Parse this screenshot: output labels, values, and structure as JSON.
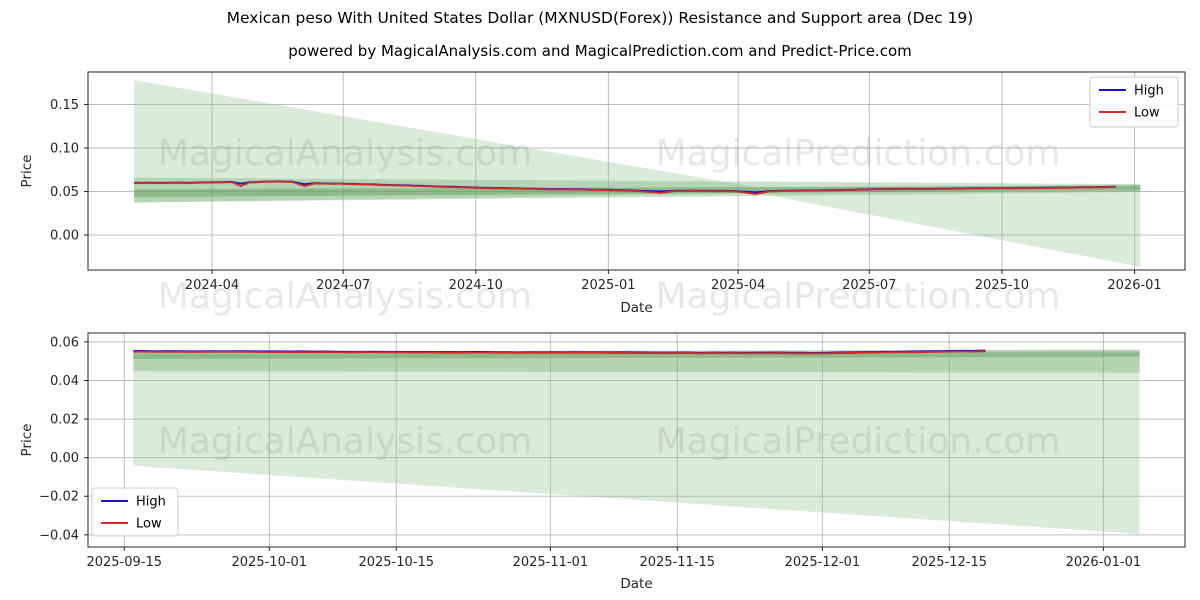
{
  "title": "Mexican peso With United States Dollar (MXNUSD(Forex)) Resistance and Support area (Dec 19)",
  "subtitle": "powered by MagicalAnalysis.com and MagicalPrediction.com and Predict-Price.com",
  "colors": {
    "high_line": "#1414cc",
    "low_line": "#d42a2a",
    "band_light": "rgba(134,188,130,0.30)",
    "band_mid": "rgba(110,170,105,0.35)",
    "band_dark": "rgba(90,150,85,0.42)",
    "grid": "#b0b0b0",
    "spine": "#262626",
    "watermark": "rgba(100,100,100,0.15)"
  },
  "watermarks": [
    "MagicalAnalysis.com",
    "MagicalPrediction.com"
  ],
  "chart_data": [
    {
      "type": "line",
      "title": "",
      "xlabel": "Date",
      "ylabel": "Price",
      "grid": true,
      "legend_position": "upper right",
      "legend": [
        "High",
        "Low"
      ],
      "xlim": [
        "2024-01-06",
        "2026-02-05"
      ],
      "ylim": [
        -0.0402,
        0.1874
      ],
      "x_ticks": [
        [
          "2024-04-01",
          "2024-04"
        ],
        [
          "2024-07-01",
          "2024-07"
        ],
        [
          "2024-10-01",
          "2024-10"
        ],
        [
          "2025-01-01",
          "2025-01"
        ],
        [
          "2025-04-01",
          "2025-04"
        ],
        [
          "2025-07-01",
          "2025-07"
        ],
        [
          "2025-10-01",
          "2025-10"
        ],
        [
          "2026-01-01",
          "2026-01"
        ]
      ],
      "y_ticks": [
        [
          0.0,
          "0.00"
        ],
        [
          0.05,
          "0.05"
        ],
        [
          0.1,
          "0.10"
        ],
        [
          0.15,
          "0.15"
        ]
      ],
      "bands": [
        {
          "name": "forecast-wedge",
          "colorKey": "band_light",
          "upper": [
            [
              "2024-02-07",
              0.178
            ],
            [
              "2025-04-15",
              0.0545
            ],
            [
              "2026-01-05",
              0.0575
            ]
          ],
          "lower": [
            [
              "2024-02-07",
              0.0372
            ],
            [
              "2025-04-15",
              0.048
            ],
            [
              "2026-01-05",
              -0.0365
            ]
          ]
        },
        {
          "name": "support-band",
          "colorKey": "band_mid",
          "upper": [
            [
              "2024-02-07",
              0.066
            ],
            [
              "2026-01-05",
              0.0585
            ]
          ],
          "lower": [
            [
              "2024-02-07",
              0.0375
            ],
            [
              "2026-01-05",
              0.0495
            ]
          ]
        },
        {
          "name": "core-band",
          "colorKey": "band_dark",
          "upper": [
            [
              "2024-02-07",
              0.0525
            ],
            [
              "2026-01-05",
              0.0568
            ]
          ],
          "lower": [
            [
              "2024-02-07",
              0.0435
            ],
            [
              "2026-01-05",
              0.0515
            ]
          ]
        }
      ],
      "series": {
        "dates": [
          "2024-02-07",
          "2024-02-17",
          "2024-02-27",
          "2024-03-08",
          "2024-03-18",
          "2024-03-28",
          "2024-04-07",
          "2024-04-15",
          "2024-04-21",
          "2024-04-27",
          "2024-05-07",
          "2024-05-17",
          "2024-05-27",
          "2024-06-04",
          "2024-06-12",
          "2024-06-22",
          "2024-07-02",
          "2024-07-12",
          "2024-07-25",
          "2024-08-08",
          "2024-08-22",
          "2024-09-05",
          "2024-09-19",
          "2024-10-03",
          "2024-10-17",
          "2024-10-31",
          "2024-11-14",
          "2024-11-28",
          "2024-12-12",
          "2024-12-26",
          "2025-01-09",
          "2025-01-23",
          "2025-02-06",
          "2025-02-16",
          "2025-03-02",
          "2025-03-16",
          "2025-03-30",
          "2025-04-13",
          "2025-04-23",
          "2025-05-07",
          "2025-05-21",
          "2025-06-04",
          "2025-06-18",
          "2025-07-02",
          "2025-07-16",
          "2025-07-30",
          "2025-08-13",
          "2025-08-27",
          "2025-09-10",
          "2025-09-24",
          "2025-10-08",
          "2025-10-22",
          "2025-11-05",
          "2025-11-19",
          "2025-12-03",
          "2025-12-12",
          "2025-12-19"
        ],
        "high": [
          0.06,
          0.0602,
          0.06,
          0.0603,
          0.0602,
          0.0605,
          0.0608,
          0.0611,
          0.0591,
          0.0608,
          0.0614,
          0.0618,
          0.0613,
          0.0585,
          0.0597,
          0.0592,
          0.0591,
          0.0586,
          0.058,
          0.0574,
          0.0567,
          0.0559,
          0.0553,
          0.0546,
          0.0542,
          0.0537,
          0.0532,
          0.0529,
          0.0527,
          0.0522,
          0.0517,
          0.0509,
          0.0503,
          0.0509,
          0.0511,
          0.0508,
          0.0506,
          0.0491,
          0.0506,
          0.0511,
          0.0514,
          0.0517,
          0.052,
          0.0527,
          0.053,
          0.0532,
          0.0531,
          0.0534,
          0.0537,
          0.0539,
          0.0541,
          0.0543,
          0.0546,
          0.0548,
          0.0551,
          0.0553,
          0.0556
        ],
        "low": [
          0.0596,
          0.0598,
          0.0596,
          0.0599,
          0.0598,
          0.0601,
          0.0604,
          0.0607,
          0.0563,
          0.0604,
          0.061,
          0.0614,
          0.0609,
          0.0563,
          0.0593,
          0.0588,
          0.0587,
          0.0582,
          0.0575,
          0.0569,
          0.0562,
          0.0554,
          0.0548,
          0.0541,
          0.0537,
          0.0532,
          0.0527,
          0.0524,
          0.0522,
          0.0517,
          0.0512,
          0.0503,
          0.0484,
          0.0505,
          0.0507,
          0.0504,
          0.0502,
          0.0471,
          0.0502,
          0.0507,
          0.051,
          0.0513,
          0.0516,
          0.0523,
          0.0526,
          0.0528,
          0.0527,
          0.053,
          0.0533,
          0.0535,
          0.0537,
          0.0539,
          0.0542,
          0.0544,
          0.0547,
          0.0549,
          0.0552
        ]
      }
    },
    {
      "type": "line",
      "title": "",
      "xlabel": "Date",
      "ylabel": "Price",
      "grid": true,
      "legend_position": "lower left",
      "legend": [
        "High",
        "Low"
      ],
      "xlim": [
        "2025-09-11",
        "2026-01-10"
      ],
      "ylim": [
        -0.0463,
        0.0646
      ],
      "x_ticks": [
        [
          "2025-09-15",
          "2025-09-15"
        ],
        [
          "2025-10-01",
          "2025-10-01"
        ],
        [
          "2025-10-15",
          "2025-10-15"
        ],
        [
          "2025-11-01",
          "2025-11-01"
        ],
        [
          "2025-11-15",
          "2025-11-15"
        ],
        [
          "2025-12-01",
          "2025-12-01"
        ],
        [
          "2025-12-15",
          "2025-12-15"
        ],
        [
          "2026-01-01",
          "2026-01-01"
        ]
      ],
      "y_ticks": [
        [
          -0.04,
          "−0.04"
        ],
        [
          -0.02,
          "−0.02"
        ],
        [
          0.0,
          "0.00"
        ],
        [
          0.02,
          "0.02"
        ],
        [
          0.04,
          "0.04"
        ],
        [
          0.06,
          "0.06"
        ]
      ],
      "bands": [
        {
          "name": "forecast-wedge",
          "colorKey": "band_light",
          "upper": [
            [
              "2025-09-16",
              0.0535
            ],
            [
              "2026-01-05",
              0.054
            ]
          ],
          "lower": [
            [
              "2025-09-16",
              -0.0042
            ],
            [
              "2026-01-05",
              -0.0395
            ]
          ]
        },
        {
          "name": "support-band",
          "colorKey": "band_mid",
          "upper": [
            [
              "2025-09-16",
              0.0542
            ],
            [
              "2026-01-05",
              0.055
            ]
          ],
          "lower": [
            [
              "2025-09-16",
              0.0448
            ],
            [
              "2026-01-05",
              0.044
            ]
          ]
        },
        {
          "name": "core-band",
          "colorKey": "band_dark",
          "upper": [
            [
              "2025-09-16",
              0.0548
            ],
            [
              "2026-01-05",
              0.056
            ]
          ],
          "lower": [
            [
              "2025-09-16",
              0.0512
            ],
            [
              "2026-01-05",
              0.0522
            ]
          ]
        }
      ],
      "series": {
        "dates": [
          "2025-09-16",
          "2025-09-21",
          "2025-09-26",
          "2025-10-01",
          "2025-10-06",
          "2025-10-11",
          "2025-10-16",
          "2025-10-21",
          "2025-10-26",
          "2025-10-31",
          "2025-11-05",
          "2025-11-10",
          "2025-11-15",
          "2025-11-20",
          "2025-11-25",
          "2025-11-30",
          "2025-12-05",
          "2025-12-09",
          "2025-12-13",
          "2025-12-16",
          "2025-12-19"
        ],
        "high": [
          0.0553,
          0.0552,
          0.0551,
          0.0551,
          0.055,
          0.0549,
          0.0548,
          0.0548,
          0.0547,
          0.0546,
          0.0547,
          0.0546,
          0.0545,
          0.0544,
          0.0545,
          0.0543,
          0.0547,
          0.0549,
          0.0552,
          0.0554,
          0.0555
        ],
        "low": [
          0.0549,
          0.0548,
          0.0548,
          0.0547,
          0.0546,
          0.0546,
          0.0545,
          0.0544,
          0.0544,
          0.0543,
          0.0544,
          0.0542,
          0.0542,
          0.0541,
          0.0541,
          0.054,
          0.0543,
          0.0546,
          0.0548,
          0.055,
          0.0551
        ]
      }
    }
  ]
}
